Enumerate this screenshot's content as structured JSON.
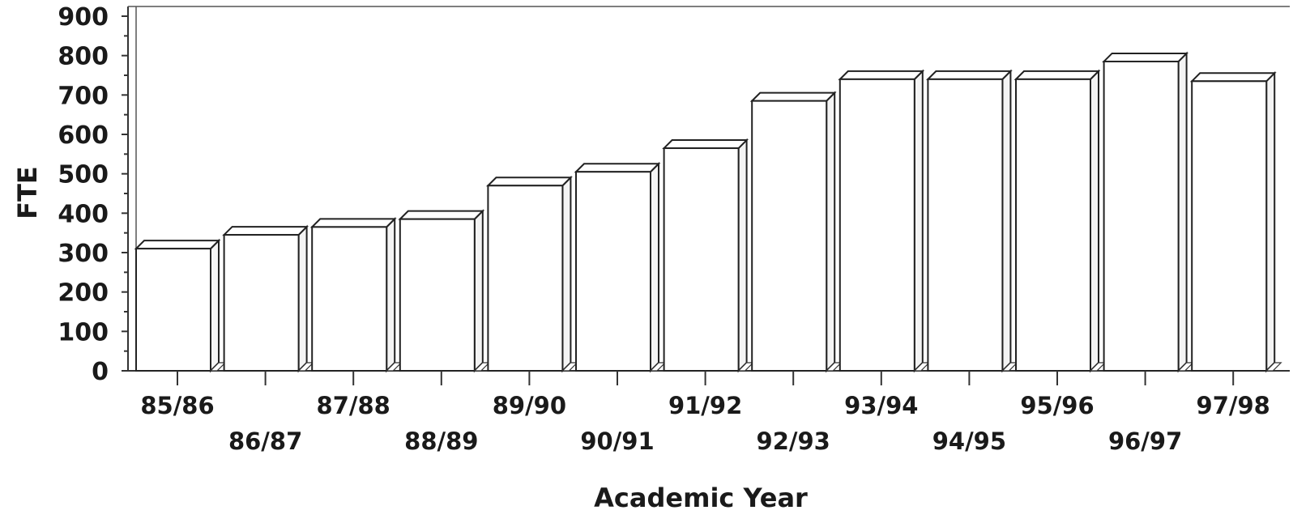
{
  "chart_data": {
    "type": "bar",
    "style": "3d",
    "title": "",
    "xlabel": "Academic Year",
    "ylabel": "FTE",
    "ylim": [
      0,
      900
    ],
    "yticks": [
      0,
      100,
      200,
      300,
      400,
      500,
      600,
      700,
      800,
      900
    ],
    "grid": false,
    "legend": "none",
    "categories": [
      "85/86",
      "86/87",
      "87/88",
      "88/89",
      "89/90",
      "90/91",
      "91/92",
      "92/93",
      "93/94",
      "94/95",
      "95/96",
      "96/97",
      "97/98"
    ],
    "values": [
      310,
      345,
      365,
      385,
      470,
      505,
      565,
      685,
      740,
      740,
      740,
      785,
      735
    ],
    "colors": {
      "bar": "#ffffff",
      "outline": "#222222",
      "side": "#f4f4f4"
    }
  }
}
